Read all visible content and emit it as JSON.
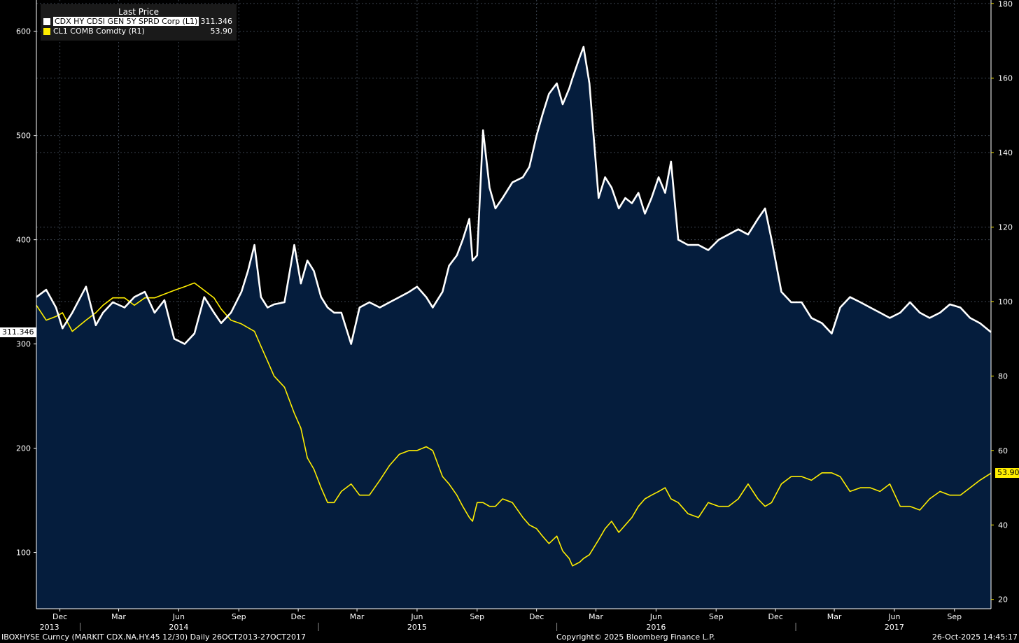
{
  "legend": {
    "header": "Last Price",
    "items": [
      {
        "name": "CDX HY CDSI GEN 5Y SPRD Corp  (L1)",
        "value": "311.346",
        "color": "#ffffff"
      },
      {
        "name": "CL1 COMB Comdty  (R1)",
        "value": "53.90",
        "color": "#ffee00"
      }
    ]
  },
  "footer": {
    "left": "IBOXHYSE Curncy (MARKIT CDX.NA.HY.45 12/30) Daily 26OCT2013-27OCT2017",
    "center": "Copyright© 2025 Bloomberg Finance L.P.",
    "right": "26-Oct-2025 14:45:17"
  },
  "colors": {
    "background": "#000000",
    "plot_fill": "#0b1f3a",
    "area": "#051d3d",
    "hy": "#ffffff",
    "oil": "#ffee00",
    "grid": "#7a8aa0"
  },
  "chart_data": {
    "type": "line",
    "x_range": [
      "2013-10-26",
      "2017-10-27"
    ],
    "month_ticks": [
      {
        "label": "Dec",
        "date": "2013-12-01"
      },
      {
        "label": "Mar",
        "date": "2014-03-01"
      },
      {
        "label": "Jun",
        "date": "2014-06-01"
      },
      {
        "label": "Sep",
        "date": "2014-09-01"
      },
      {
        "label": "Dec",
        "date": "2014-12-01"
      },
      {
        "label": "Mar",
        "date": "2015-03-01"
      },
      {
        "label": "Jun",
        "date": "2015-06-01"
      },
      {
        "label": "Sep",
        "date": "2015-09-01"
      },
      {
        "label": "Dec",
        "date": "2015-12-01"
      },
      {
        "label": "Mar",
        "date": "2016-03-01"
      },
      {
        "label": "Jun",
        "date": "2016-06-01"
      },
      {
        "label": "Sep",
        "date": "2016-09-01"
      },
      {
        "label": "Dec",
        "date": "2016-12-01"
      },
      {
        "label": "Mar",
        "date": "2017-03-01"
      },
      {
        "label": "Jun",
        "date": "2017-06-01"
      },
      {
        "label": "Sep",
        "date": "2017-09-01"
      }
    ],
    "year_labels": [
      {
        "label": "2013",
        "date": "2013-11-15"
      },
      {
        "label": "2014",
        "date": "2014-06-01"
      },
      {
        "label": "2015",
        "date": "2015-06-01"
      },
      {
        "label": "2016",
        "date": "2016-06-01"
      },
      {
        "label": "2017",
        "date": "2017-06-01"
      }
    ],
    "year_boundaries": [
      "2014-01-01",
      "2015-01-01",
      "2016-01-01",
      "2017-01-01"
    ],
    "left_axis": {
      "min": 46,
      "max": 630,
      "ticks": [
        100,
        200,
        300,
        400,
        500,
        600
      ]
    },
    "right_axis": {
      "min": 17.5,
      "max": 181,
      "ticks": [
        20,
        40,
        60,
        80,
        100,
        120,
        140,
        160,
        180
      ]
    },
    "last_value_tags": [
      {
        "series": "CDX HY CDSI GEN 5Y SPRD Corp",
        "value": 311.346,
        "label": "311.346",
        "axis": "left"
      },
      {
        "series": "CL1 COMB Comdty",
        "value": 53.9,
        "label": "53.90",
        "axis": "right"
      }
    ],
    "series": [
      {
        "name": "CDX HY CDSI GEN 5Y SPRD Corp",
        "axis": "left",
        "color": "#ffffff",
        "area": true,
        "x": [
          "2013-10-26",
          "2013-11-10",
          "2013-11-25",
          "2013-12-05",
          "2013-12-20",
          "2014-01-10",
          "2014-01-25",
          "2014-02-05",
          "2014-02-20",
          "2014-03-10",
          "2014-03-25",
          "2014-04-10",
          "2014-04-25",
          "2014-05-10",
          "2014-05-25",
          "2014-06-10",
          "2014-06-25",
          "2014-07-10",
          "2014-07-25",
          "2014-08-05",
          "2014-08-20",
          "2014-09-05",
          "2014-09-15",
          "2014-09-25",
          "2014-10-05",
          "2014-10-15",
          "2014-10-25",
          "2014-11-10",
          "2014-11-25",
          "2014-12-05",
          "2014-12-15",
          "2014-12-25",
          "2015-01-05",
          "2015-01-15",
          "2015-01-25",
          "2015-02-05",
          "2015-02-20",
          "2015-03-05",
          "2015-03-20",
          "2015-04-05",
          "2015-04-20",
          "2015-05-05",
          "2015-05-20",
          "2015-06-01",
          "2015-06-15",
          "2015-06-25",
          "2015-07-10",
          "2015-07-20",
          "2015-08-01",
          "2015-08-10",
          "2015-08-20",
          "2015-08-25",
          "2015-09-01",
          "2015-09-10",
          "2015-09-20",
          "2015-09-29",
          "2015-10-10",
          "2015-10-25",
          "2015-11-10",
          "2015-11-20",
          "2015-12-01",
          "2015-12-10",
          "2015-12-20",
          "2016-01-01",
          "2016-01-10",
          "2016-01-20",
          "2016-01-25",
          "2016-02-05",
          "2016-02-11",
          "2016-02-20",
          "2016-03-05",
          "2016-03-15",
          "2016-03-25",
          "2016-04-05",
          "2016-04-15",
          "2016-04-25",
          "2016-05-05",
          "2016-05-15",
          "2016-05-25",
          "2016-06-05",
          "2016-06-15",
          "2016-06-24",
          "2016-07-05",
          "2016-07-20",
          "2016-08-05",
          "2016-08-20",
          "2016-09-05",
          "2016-09-20",
          "2016-10-05",
          "2016-10-20",
          "2016-11-04",
          "2016-11-15",
          "2016-11-25",
          "2016-12-10",
          "2016-12-25",
          "2017-01-10",
          "2017-01-25",
          "2017-02-10",
          "2017-02-25",
          "2017-03-10",
          "2017-03-25",
          "2017-04-10",
          "2017-04-25",
          "2017-05-10",
          "2017-05-25",
          "2017-06-10",
          "2017-06-25",
          "2017-07-10",
          "2017-07-25",
          "2017-08-10",
          "2017-08-25",
          "2017-09-10",
          "2017-09-25",
          "2017-10-10",
          "2017-10-27"
        ],
        "values": [
          345,
          352,
          335,
          315,
          330,
          355,
          318,
          330,
          340,
          335,
          345,
          350,
          330,
          342,
          305,
          300,
          310,
          345,
          330,
          320,
          330,
          350,
          370,
          395,
          345,
          335,
          338,
          340,
          395,
          358,
          380,
          370,
          345,
          335,
          330,
          330,
          300,
          335,
          340,
          335,
          340,
          345,
          350,
          355,
          345,
          335,
          350,
          375,
          385,
          400,
          420,
          380,
          385,
          505,
          450,
          430,
          440,
          455,
          460,
          470,
          500,
          520,
          540,
          550,
          530,
          545,
          555,
          575,
          585,
          550,
          440,
          460,
          450,
          430,
          440,
          435,
          445,
          425,
          440,
          460,
          445,
          475,
          400,
          395,
          395,
          390,
          400,
          405,
          410,
          405,
          420,
          430,
          400,
          350,
          340,
          340,
          325,
          320,
          310,
          335,
          345,
          340,
          335,
          330,
          325,
          330,
          340,
          330,
          325,
          330,
          338,
          335,
          325,
          320,
          311.346
        ],
        "shape": "thick-white-line"
      },
      {
        "name": "CL1 COMB Comdty",
        "axis": "right",
        "color": "#ffee00",
        "x": [
          "2013-10-26",
          "2013-11-10",
          "2013-11-25",
          "2013-12-05",
          "2013-12-20",
          "2014-01-10",
          "2014-01-25",
          "2014-02-05",
          "2014-02-20",
          "2014-03-10",
          "2014-03-25",
          "2014-04-10",
          "2014-04-25",
          "2014-05-10",
          "2014-05-25",
          "2014-06-10",
          "2014-06-25",
          "2014-07-10",
          "2014-07-25",
          "2014-08-05",
          "2014-08-20",
          "2014-09-05",
          "2014-09-15",
          "2014-09-25",
          "2014-10-05",
          "2014-10-15",
          "2014-10-25",
          "2014-11-10",
          "2014-11-25",
          "2014-12-05",
          "2014-12-15",
          "2014-12-25",
          "2015-01-05",
          "2015-01-15",
          "2015-01-25",
          "2015-02-05",
          "2015-02-20",
          "2015-03-05",
          "2015-03-20",
          "2015-04-05",
          "2015-04-20",
          "2015-05-05",
          "2015-05-20",
          "2015-06-01",
          "2015-06-15",
          "2015-06-25",
          "2015-07-10",
          "2015-07-20",
          "2015-08-01",
          "2015-08-10",
          "2015-08-20",
          "2015-08-25",
          "2015-09-01",
          "2015-09-10",
          "2015-09-20",
          "2015-09-29",
          "2015-10-10",
          "2015-10-25",
          "2015-11-10",
          "2015-11-20",
          "2015-12-01",
          "2015-12-10",
          "2015-12-20",
          "2016-01-01",
          "2016-01-10",
          "2016-01-20",
          "2016-01-25",
          "2016-02-05",
          "2016-02-11",
          "2016-02-20",
          "2016-03-05",
          "2016-03-15",
          "2016-03-25",
          "2016-04-05",
          "2016-04-15",
          "2016-04-25",
          "2016-05-05",
          "2016-05-15",
          "2016-05-25",
          "2016-06-05",
          "2016-06-15",
          "2016-06-24",
          "2016-07-05",
          "2016-07-20",
          "2016-08-05",
          "2016-08-20",
          "2016-09-05",
          "2016-09-20",
          "2016-10-05",
          "2016-10-20",
          "2016-11-04",
          "2016-11-15",
          "2016-11-25",
          "2016-12-10",
          "2016-12-25",
          "2017-01-10",
          "2017-01-25",
          "2017-02-10",
          "2017-02-25",
          "2017-03-10",
          "2017-03-25",
          "2017-04-10",
          "2017-04-25",
          "2017-05-10",
          "2017-05-25",
          "2017-06-10",
          "2017-06-25",
          "2017-07-10",
          "2017-07-25",
          "2017-08-10",
          "2017-08-25",
          "2017-09-10",
          "2017-09-25",
          "2017-10-10",
          "2017-10-27"
        ],
        "values": [
          99,
          95,
          96,
          97,
          92,
          95,
          97,
          99,
          101,
          101,
          99,
          101,
          101,
          102,
          103,
          104,
          105,
          103,
          101,
          98,
          95,
          94,
          93,
          92,
          88,
          84,
          80,
          77,
          70,
          66,
          58,
          55,
          50,
          46,
          46,
          49,
          51,
          48,
          48,
          52,
          56,
          59,
          60,
          60,
          61,
          60,
          53,
          51,
          48,
          45,
          42,
          41,
          46,
          46,
          45,
          45,
          47,
          46,
          42,
          40,
          39,
          37,
          35,
          37,
          33,
          31,
          29,
          30,
          31,
          32,
          36,
          39,
          41,
          38,
          40,
          42,
          45,
          47,
          48,
          49,
          50,
          47,
          46,
          43,
          42,
          46,
          45,
          45,
          47,
          51,
          47,
          45,
          46,
          51,
          53,
          53,
          52,
          54,
          54,
          53,
          49,
          50,
          50,
          49,
          51,
          45,
          45,
          44,
          47,
          49,
          48,
          48,
          50,
          52,
          53.9
        ],
        "shape": "thin-yellow-line"
      }
    ]
  }
}
